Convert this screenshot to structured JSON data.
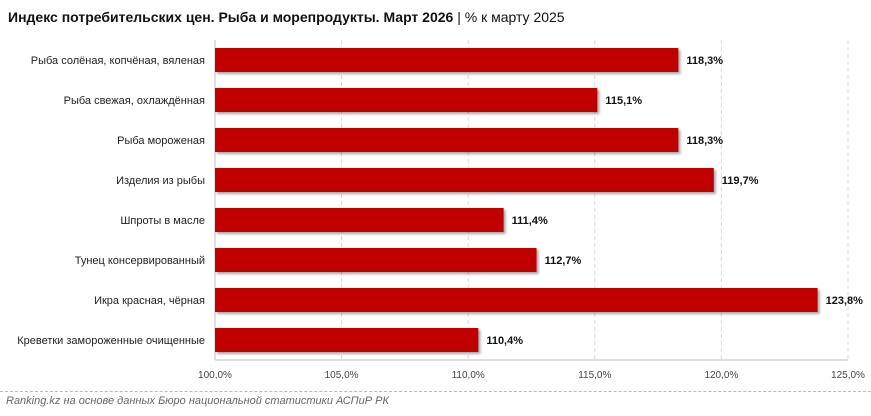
{
  "title": "Индекс потребительских цен. Рыба и морепродукты. Март 2026",
  "subtitle": "% к марту 2025",
  "source": "Ranking.kz на основе данных Бюро национальной статистики АСПиР РК",
  "chart_data": {
    "type": "bar",
    "orientation": "horizontal",
    "title": "Индекс потребительских цен. Рыба и морепродукты. Март 2026 | % к марту 2025",
    "categories": [
      "Рыба солёная, копчёная, вяленая",
      "Рыба свежая, охлаждённая",
      "Рыба мороженая",
      "Изделия из рыбы",
      "Шпроты в масле",
      "Тунец консервированный",
      "Икра красная, чёрная",
      "Креветки замороженные очищенные"
    ],
    "values": [
      118.3,
      115.1,
      118.3,
      119.7,
      111.4,
      112.7,
      123.8,
      110.4
    ],
    "labels": [
      "118,3%",
      "115,1%",
      "118,3%",
      "119,7%",
      "111,4%",
      "112,7%",
      "123,8%",
      "110,4%"
    ],
    "xlim": [
      100,
      125
    ],
    "ticks": [
      100,
      105,
      110,
      115,
      120,
      125
    ],
    "tick_labels": [
      "100,0%",
      "105,0%",
      "110,0%",
      "115,0%",
      "120,0%",
      "125,0%"
    ],
    "grid": true,
    "bar_color": "#c00000"
  }
}
